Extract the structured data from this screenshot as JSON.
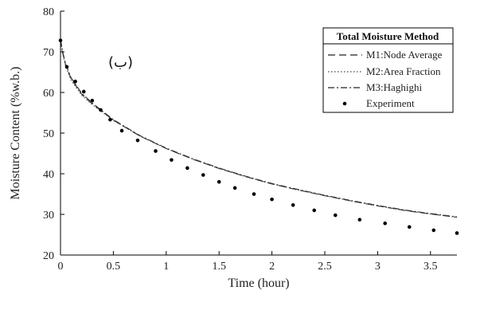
{
  "chart_data": {
    "type": "line",
    "xlabel": "Time (hour)",
    "ylabel": "Moisture Content (%w.b.)",
    "xlim": [
      0,
      3.75
    ],
    "ylim": [
      20,
      80
    ],
    "xticks": [
      "0",
      "0.5",
      "1",
      "1.5",
      "2",
      "2.5",
      "3",
      "3.5"
    ],
    "yticks": [
      "20",
      "30",
      "40",
      "50",
      "60",
      "70",
      "80"
    ],
    "grid": false,
    "legend": {
      "title": "Total Moisture Method",
      "placement": "top-right",
      "entries": [
        "M1:Node Average",
        "M2:Area Fraction",
        "M3:Haghighi",
        "Experiment"
      ]
    },
    "annotation": "(ب)",
    "series": [
      {
        "name": "M1:Node Average",
        "style": "dashed",
        "x": [
          0,
          0.02,
          0.05,
          0.1,
          0.2,
          0.3,
          0.5,
          0.75,
          1.0,
          1.25,
          1.5,
          1.75,
          2.0,
          2.25,
          2.5,
          2.75,
          3.0,
          3.25,
          3.5,
          3.75
        ],
        "y": [
          73,
          69.8,
          66.6,
          63.4,
          59.6,
          57.2,
          53.2,
          49.3,
          46.2,
          43.6,
          41.3,
          39.3,
          37.5,
          36.0,
          34.6,
          33.3,
          32.1,
          31.0,
          30.1,
          29.3
        ]
      },
      {
        "name": "M2:Area Fraction",
        "style": "dotted",
        "x": [
          0,
          0.02,
          0.05,
          0.1,
          0.2,
          0.3,
          0.5,
          0.75,
          1.0,
          1.25,
          1.5,
          1.75,
          2.0,
          2.25,
          2.5,
          2.75,
          3.0,
          3.25,
          3.5,
          3.75
        ],
        "y": [
          73,
          69.6,
          66.3,
          63.0,
          59.3,
          57.0,
          53.1,
          49.3,
          46.2,
          43.6,
          41.3,
          39.3,
          37.5,
          36.0,
          34.6,
          33.3,
          32.1,
          31.0,
          30.1,
          29.3
        ]
      },
      {
        "name": "M3:Haghighi",
        "style": "dashdot",
        "x": [
          0,
          0.02,
          0.05,
          0.1,
          0.2,
          0.3,
          0.5,
          0.75,
          1.0,
          1.25,
          1.5,
          1.75,
          2.0,
          2.25,
          2.5,
          2.75,
          3.0,
          3.25,
          3.5,
          3.75
        ],
        "y": [
          73,
          70.0,
          66.9,
          63.6,
          59.8,
          57.4,
          53.3,
          49.4,
          46.3,
          43.7,
          41.4,
          39.4,
          37.6,
          36.1,
          34.7,
          33.4,
          32.2,
          31.1,
          30.2,
          29.4
        ]
      },
      {
        "name": "Experiment",
        "style": "markers",
        "x": [
          0,
          0.06,
          0.14,
          0.22,
          0.3,
          0.38,
          0.47,
          0.58,
          0.73,
          0.9,
          1.05,
          1.2,
          1.35,
          1.5,
          1.65,
          1.83,
          2.0,
          2.2,
          2.4,
          2.6,
          2.83,
          3.07,
          3.3,
          3.53,
          3.75
        ],
        "y": [
          72.8,
          66.3,
          62.7,
          60.2,
          58.0,
          55.7,
          53.3,
          50.6,
          48.2,
          45.6,
          43.4,
          41.4,
          39.7,
          38.0,
          36.5,
          35.0,
          33.7,
          32.3,
          31.0,
          29.8,
          28.7,
          27.8,
          26.9,
          26.1,
          25.4
        ]
      }
    ]
  }
}
